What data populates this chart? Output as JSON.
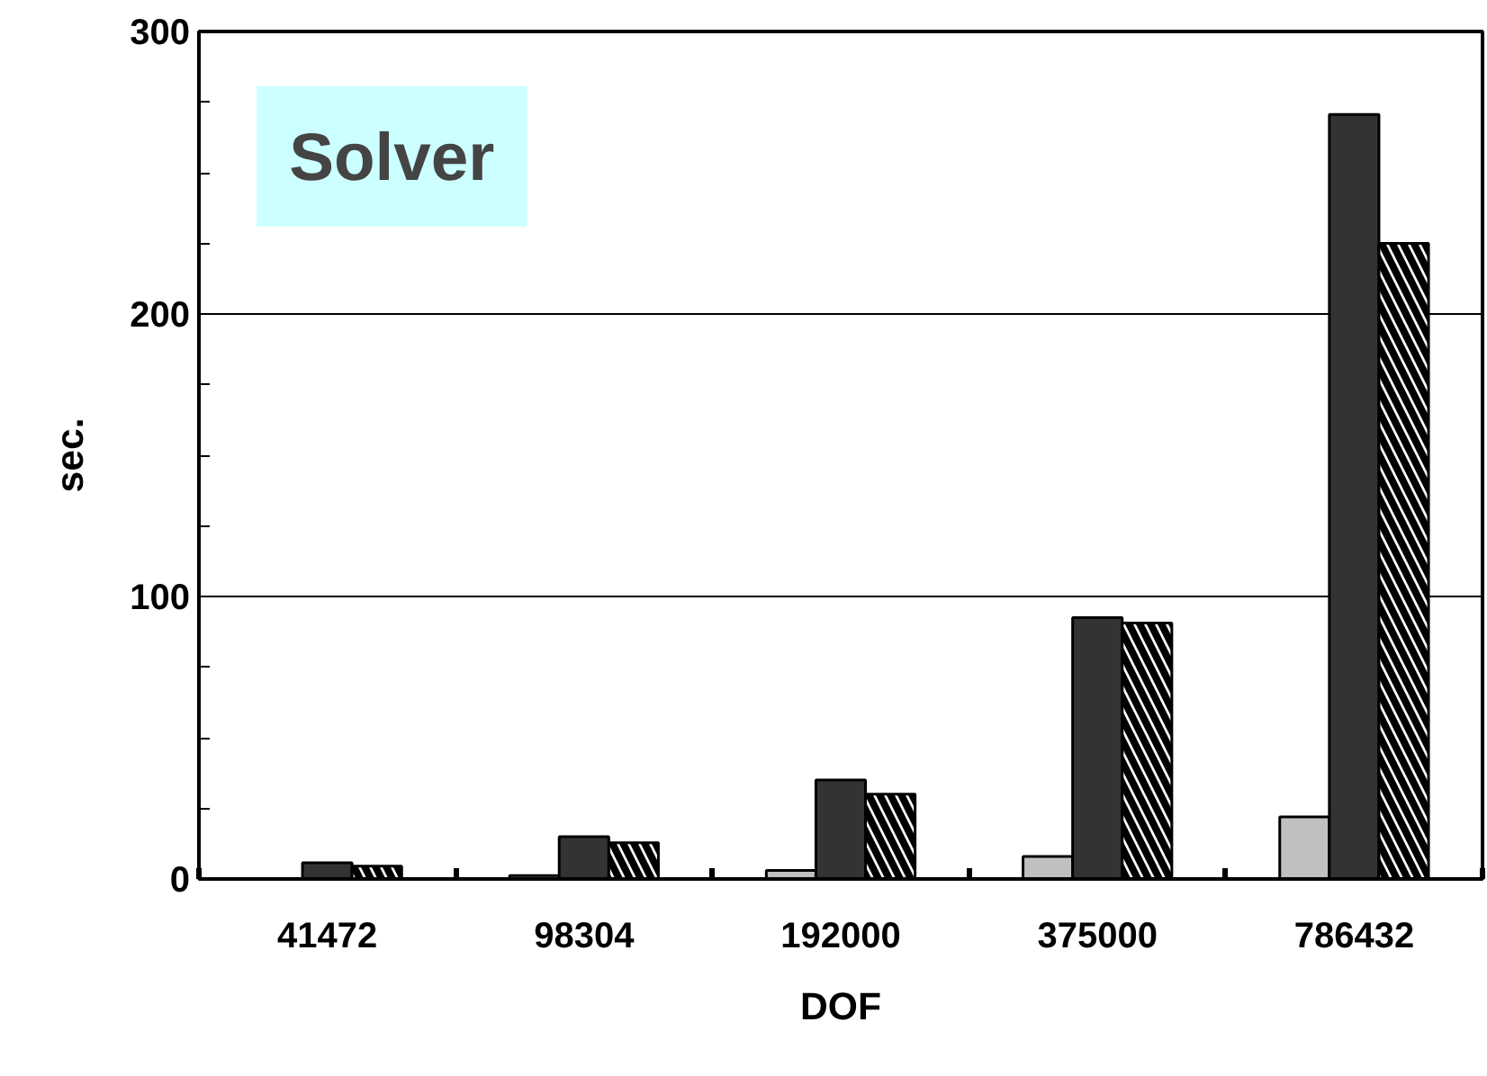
{
  "chart_data": {
    "type": "bar",
    "xlabel": "DOF",
    "ylabel": "sec.",
    "annotations": [
      "Solver"
    ],
    "categories": [
      "41472",
      "98304",
      "192000",
      "375000",
      "786432"
    ],
    "series": [
      {
        "color": "#c0c0c0",
        "values": [
          null,
          1.2,
          3,
          8,
          22
        ]
      },
      {
        "color": "#333333",
        "values": [
          5.7,
          15,
          35,
          92.5,
          270.6
        ]
      },
      {
        "color": "#ffffff",
        "values": [
          4.5,
          12.8,
          30,
          90.6,
          225
        ]
      }
    ],
    "ylim": [
      0,
      300
    ],
    "yticks": [
      0,
      100,
      200,
      300
    ],
    "grid": "y"
  }
}
